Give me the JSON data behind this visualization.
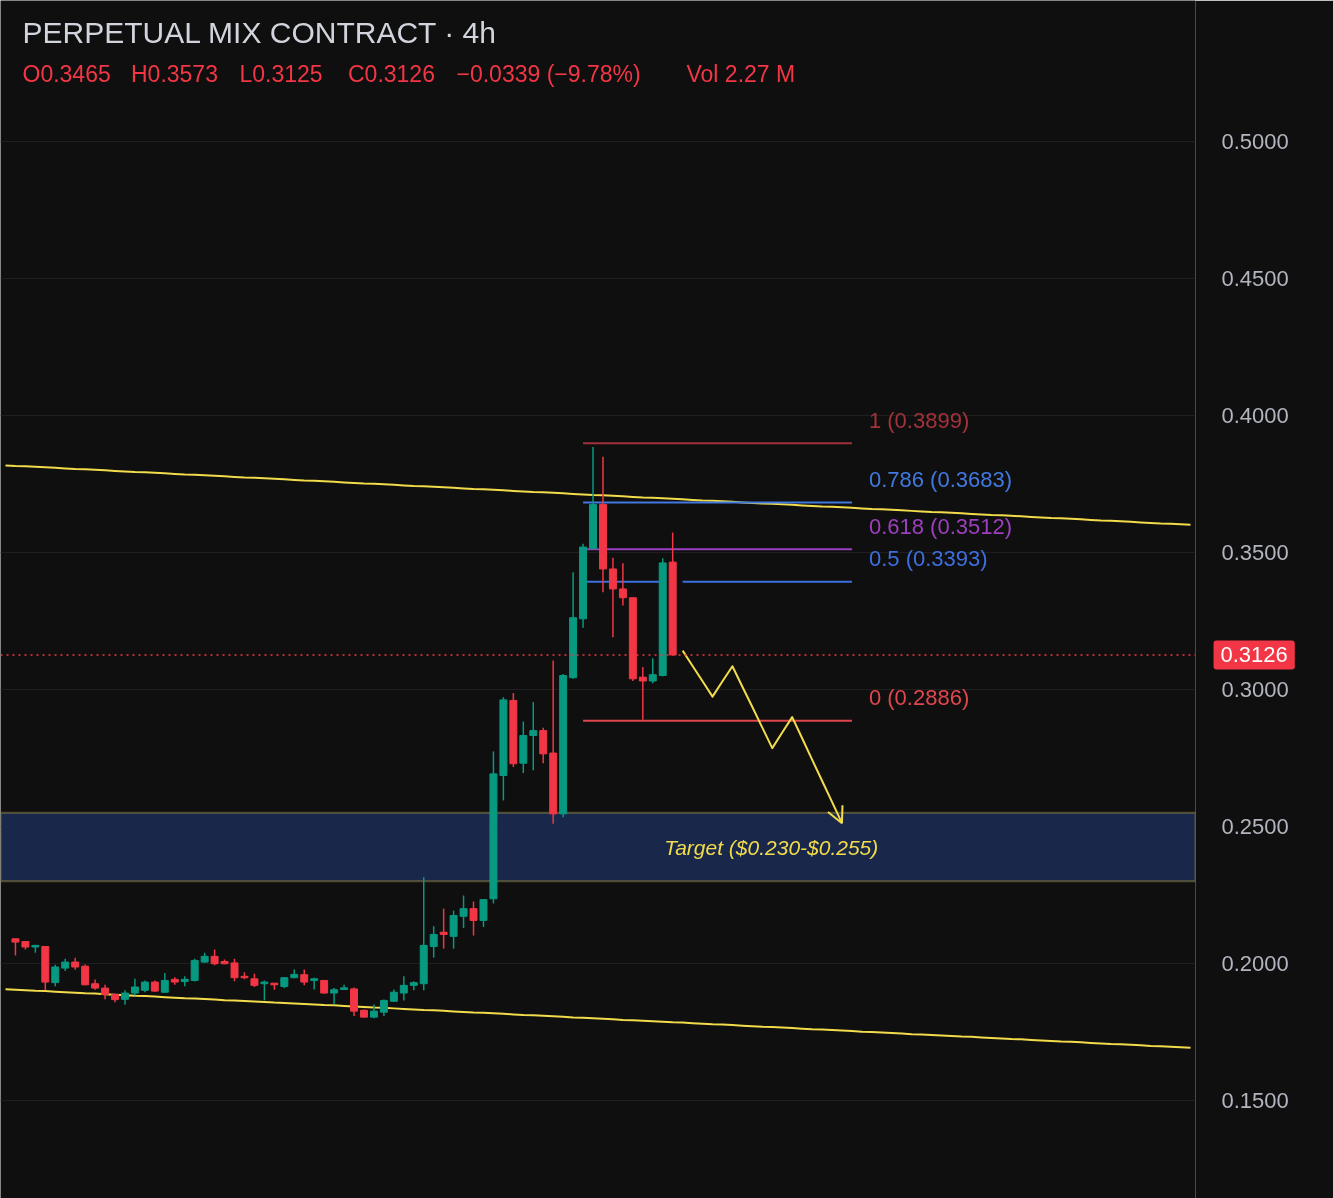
{
  "chart_data": {
    "type": "candlestick",
    "title": "PERPETUAL MIX CONTRACT · 4h",
    "annotations": [
      "O0.3465",
      "H0.3573",
      "L0.3125",
      "C0.3126",
      "−0.0339 (−9.78%)",
      "Vol 2.27 M"
    ],
    "categories": [
      null,
      null,
      null,
      null,
      null,
      null,
      null,
      null,
      null,
      null,
      null,
      null,
      null,
      null,
      null,
      null,
      null,
      null,
      null,
      null,
      null,
      null,
      null,
      null,
      null,
      null,
      null,
      null,
      null,
      null,
      null,
      null,
      null,
      null,
      null,
      null,
      null,
      null,
      null,
      null,
      null,
      null,
      null,
      null,
      null,
      null,
      null,
      null,
      null,
      null,
      null,
      null,
      null,
      null,
      null,
      null,
      null,
      null,
      null,
      null,
      null,
      null,
      null,
      null,
      null,
      null,
      null,
      null,
      null,
      null,
      null,
      null,
      null,
      null,
      null,
      null,
      null,
      null,
      null,
      null,
      null,
      null,
      null,
      null,
      null,
      null,
      null,
      null,
      null,
      null,
      null,
      null,
      null,
      null,
      null,
      null,
      null,
      null,
      null,
      null,
      null,
      null,
      null,
      null,
      null,
      null,
      null,
      null,
      null,
      null,
      null,
      null,
      null,
      null,
      null,
      null,
      null,
      null,
      null,
      null
    ],
    "ohlc": [
      null,
      [
        0.209,
        0.209,
        0.2029,
        0.2078
      ],
      [
        0.208,
        0.208,
        0.2051,
        0.206
      ],
      [
        0.206,
        0.2066,
        0.2039,
        0.2066
      ],
      [
        0.2062,
        0.2062,
        0.1902,
        0.1932
      ],
      [
        0.193,
        0.1995,
        0.1917,
        0.1987
      ],
      [
        0.1983,
        0.2017,
        0.1972,
        0.2005
      ],
      [
        0.2005,
        0.2021,
        0.1977,
        0.1987
      ],
      [
        0.199,
        0.1996,
        0.192,
        0.1922
      ],
      [
        0.1926,
        0.1941,
        0.1904,
        0.191
      ],
      [
        0.191,
        0.1922,
        0.1869,
        0.1887
      ],
      [
        0.1887,
        0.1888,
        0.1858,
        0.1868
      ],
      [
        0.1869,
        0.1902,
        0.1849,
        0.1892
      ],
      [
        0.1892,
        0.1944,
        0.1883,
        0.1914
      ],
      [
        0.1902,
        0.1938,
        0.1895,
        0.1932
      ],
      [
        0.1932,
        0.1938,
        0.1897,
        0.1899
      ],
      [
        0.1895,
        0.1965,
        0.1892,
        0.1938
      ],
      [
        0.1942,
        0.195,
        0.1922,
        0.1932
      ],
      [
        0.1934,
        0.1953,
        0.1917,
        0.1942
      ],
      [
        0.1938,
        0.2017,
        0.1934,
        0.2011
      ],
      [
        0.2005,
        0.2039,
        0.2003,
        0.2026
      ],
      [
        0.2026,
        0.2051,
        0.1993,
        0.1999
      ],
      [
        0.2007,
        0.2014,
        0.1997,
        0.1999
      ],
      [
        0.2002,
        0.2017,
        0.1935,
        0.1948
      ],
      [
        0.1953,
        0.1968,
        0.1942,
        0.1948
      ],
      [
        0.1944,
        0.1962,
        0.1914,
        0.192
      ],
      [
        0.1926,
        0.1938,
        0.1865,
        0.1932
      ],
      [
        0.1928,
        0.1928,
        0.1904,
        0.1922
      ],
      [
        0.1916,
        0.195,
        0.191,
        0.1948
      ],
      [
        0.1948,
        0.1978,
        0.1946,
        0.196
      ],
      [
        0.1959,
        0.1978,
        0.192,
        0.1932
      ],
      [
        0.1938,
        0.1948,
        0.1905,
        0.1944
      ],
      [
        0.1938,
        0.194,
        0.189,
        0.1892
      ],
      [
        0.1892,
        0.191,
        0.185,
        0.1904
      ],
      [
        0.1905,
        0.1922,
        0.1905,
        0.1911
      ],
      [
        0.1907,
        0.1912,
        0.1808,
        0.1826
      ],
      [
        0.1829,
        0.1832,
        0.1804,
        0.1804
      ],
      [
        0.1804,
        0.185,
        0.18,
        0.1826
      ],
      [
        0.1822,
        0.1868,
        0.1808,
        0.1865
      ],
      [
        0.1862,
        0.1905,
        0.186,
        0.1895
      ],
      [
        0.1892,
        0.1953,
        0.1865,
        0.192
      ],
      [
        0.192,
        0.1935,
        0.1902,
        0.193
      ],
      [
        0.1926,
        0.2315,
        0.1902,
        0.2066
      ],
      [
        0.2062,
        0.2136,
        0.2021,
        0.2106
      ],
      [
        0.2114,
        0.22,
        0.2054,
        0.2106
      ],
      [
        0.2099,
        0.2193,
        0.2054,
        0.2175
      ],
      [
        0.2172,
        0.2248,
        0.2129,
        0.22
      ],
      [
        0.22,
        0.2226,
        0.2102,
        0.2157
      ],
      [
        0.2157,
        0.2235,
        0.2133,
        0.2233
      ],
      [
        0.2236,
        0.2774,
        0.2219,
        0.2692
      ],
      [
        0.2686,
        0.2972,
        0.2595,
        0.2962
      ],
      [
        0.296,
        0.2987,
        0.2717,
        0.2729
      ],
      [
        0.2731,
        0.2883,
        0.2695,
        0.2832
      ],
      [
        0.2832,
        0.2954,
        0.2705,
        0.285
      ],
      [
        0.285,
        0.286,
        0.2731,
        0.2765
      ],
      [
        0.2768,
        0.3106,
        0.251,
        0.2546
      ],
      [
        0.2546,
        0.3057,
        0.2534,
        0.3051
      ],
      [
        0.3043,
        0.3428,
        0.3039,
        0.3262
      ],
      [
        0.3258,
        0.3532,
        0.3225,
        0.352
      ],
      [
        0.3514,
        0.3885,
        0.3514,
        0.3675
      ],
      [
        0.3675,
        0.385,
        0.3355,
        0.344
      ],
      [
        0.344,
        0.3481,
        0.3191,
        0.3367
      ],
      [
        0.3367,
        0.3461,
        0.3307,
        0.3335
      ],
      [
        0.3335,
        0.3335,
        0.3031,
        0.3039
      ],
      [
        0.3045,
        0.3082,
        0.289,
        0.3031
      ],
      [
        0.3031,
        0.3114,
        0.3023,
        0.3054
      ],
      [
        0.3051,
        0.3479,
        0.3048,
        0.3462
      ],
      [
        0.3465,
        0.3573,
        0.3125,
        0.3126
      ],
      null,
      null,
      null,
      null,
      null,
      null,
      null,
      null,
      null,
      null,
      null,
      null,
      null,
      null,
      null,
      null,
      null,
      null,
      null,
      null,
      null,
      null,
      null,
      null,
      null,
      null,
      null,
      null,
      null,
      null,
      null,
      null,
      null,
      null,
      null,
      null,
      null,
      null,
      null,
      null,
      null,
      null,
      null,
      null,
      null,
      null,
      null,
      null,
      null,
      null,
      null,
      null
    ],
    "ylim": [
      0.1142,
      0.5515
    ],
    "yticks": [
      {
        "value": 0.15,
        "label": "0.1500"
      },
      {
        "value": 0.2,
        "label": "0.2000"
      },
      {
        "value": 0.25,
        "label": "0.2500"
      },
      {
        "value": 0.3,
        "label": "0.3000"
      },
      {
        "value": 0.35,
        "label": "0.3500"
      },
      {
        "value": 0.4,
        "label": "0.4000"
      },
      {
        "value": 0.45,
        "label": "0.4500"
      },
      {
        "value": 0.5,
        "label": "0.5000"
      }
    ],
    "tick_labels": "y",
    "grid": "y",
    "series": [
      {
        "type": "line",
        "color": "#f2dc4b",
        "values": [
          0.3818,
          0.3816,
          0.3815,
          0.3813,
          0.3811,
          0.3809,
          0.3807,
          0.3805,
          0.3804,
          0.3802,
          0.38,
          0.3798,
          0.3796,
          0.3794,
          0.3793,
          0.3791,
          0.3789,
          0.3787,
          0.3785,
          0.3784,
          0.3782,
          0.378,
          0.3778,
          0.3776,
          0.3774,
          0.3773,
          0.3771,
          0.3769,
          0.3767,
          0.3765,
          0.3763,
          0.3762,
          0.376,
          0.3758,
          0.3756,
          0.3754,
          0.3752,
          0.3751,
          0.3749,
          0.3747,
          0.3745,
          0.3743,
          0.3742,
          0.374,
          0.3738,
          0.3736,
          0.3734,
          0.3732,
          0.3731,
          0.3729,
          0.3727,
          0.3725,
          0.3723,
          0.3721,
          0.372,
          0.3718,
          0.3716,
          0.3714,
          0.3712,
          0.371,
          0.3709,
          0.3707,
          0.3705,
          0.3703,
          0.3701,
          0.37,
          0.3698,
          0.3696,
          0.3694,
          0.3692,
          0.369,
          0.3689,
          0.3687,
          0.3685,
          0.3683,
          0.3681,
          0.3679,
          0.3678,
          0.3676,
          0.3674,
          0.3672,
          0.367,
          0.3668,
          0.3667,
          0.3665,
          0.3663,
          0.3661,
          0.3659,
          0.3658,
          0.3656,
          0.3654,
          0.3652,
          0.365,
          0.3648,
          0.3647,
          0.3645,
          0.3643,
          0.3641,
          0.3639,
          0.3637,
          0.3636,
          0.3634,
          0.3632,
          0.363,
          0.3628,
          0.3626,
          0.3625,
          0.3623,
          0.3621,
          0.3619,
          0.3617,
          0.3616,
          0.3614,
          0.3612,
          0.361,
          0.3608,
          0.3606,
          0.3605,
          0.3603,
          0.3601
        ]
      },
      {
        "type": "line",
        "color": "#f2dc4b",
        "values": [
          0.1906,
          0.1904,
          0.1902,
          0.19,
          0.1899,
          0.1897,
          0.1895,
          0.1893,
          0.1891,
          0.189,
          0.1888,
          0.1886,
          0.1884,
          0.1882,
          0.1881,
          0.1879,
          0.1877,
          0.1875,
          0.1873,
          0.1872,
          0.187,
          0.1868,
          0.1866,
          0.1865,
          0.1863,
          0.1861,
          0.1859,
          0.1857,
          0.1856,
          0.1854,
          0.1852,
          0.185,
          0.1848,
          0.1847,
          0.1845,
          0.1843,
          0.1841,
          0.1839,
          0.1838,
          0.1836,
          0.1834,
          0.1832,
          0.183,
          0.1829,
          0.1827,
          0.1825,
          0.1823,
          0.1821,
          0.182,
          0.1818,
          0.1816,
          0.1814,
          0.1812,
          0.1811,
          0.1809,
          0.1807,
          0.1805,
          0.1803,
          0.1802,
          0.18,
          0.1798,
          0.1796,
          0.1794,
          0.1793,
          0.1791,
          0.1789,
          0.1787,
          0.1785,
          0.1784,
          0.1782,
          0.178,
          0.1778,
          0.1777,
          0.1775,
          0.1773,
          0.1771,
          0.1769,
          0.1768,
          0.1766,
          0.1764,
          0.1762,
          0.176,
          0.1759,
          0.1757,
          0.1755,
          0.1753,
          0.1751,
          0.175,
          0.1748,
          0.1746,
          0.1744,
          0.1742,
          0.1741,
          0.1739,
          0.1737,
          0.1735,
          0.1733,
          0.1732,
          0.173,
          0.1728,
          0.1726,
          0.1724,
          0.1723,
          0.1721,
          0.1719,
          0.1717,
          0.1715,
          0.1714,
          0.1712,
          0.171,
          0.1708,
          0.1706,
          0.1705,
          0.1703,
          0.1701,
          0.1699,
          0.1698,
          0.1696,
          0.1694,
          0.1692
        ]
      },
      {
        "type": "line",
        "name": "1 (0.3899)",
        "color": "#a3323c",
        "values": [
          null,
          null,
          null,
          null,
          null,
          null,
          null,
          null,
          null,
          null,
          null,
          null,
          null,
          null,
          null,
          null,
          null,
          null,
          null,
          null,
          null,
          null,
          null,
          null,
          null,
          null,
          null,
          null,
          null,
          null,
          null,
          null,
          null,
          null,
          null,
          null,
          null,
          null,
          null,
          null,
          null,
          null,
          null,
          null,
          null,
          null,
          null,
          null,
          null,
          null,
          null,
          null,
          null,
          null,
          null,
          null,
          null,
          null,
          0.3899,
          0.3899,
          0.3899,
          0.3899,
          0.3899,
          0.3899,
          0.3899,
          0.3899,
          0.3899,
          0.3899,
          0.3899,
          0.3899,
          0.3899,
          0.3899,
          0.3899,
          0.3899,
          0.3899,
          0.3899,
          0.3899,
          0.3899,
          0.3899,
          0.3899,
          0.3899,
          0.3899,
          0.3899,
          0.3899,
          0.3899,
          0.3899,
          null,
          null,
          null,
          null,
          null,
          null,
          null,
          null,
          null,
          null,
          null,
          null,
          null,
          null,
          null,
          null,
          null,
          null,
          null,
          null,
          null,
          null,
          null,
          null,
          null,
          null,
          null,
          null,
          null,
          null,
          null,
          null,
          null,
          null
        ]
      },
      {
        "type": "line",
        "name": "0.786 (0.3683)",
        "color": "#4179e0",
        "values": [
          null,
          null,
          null,
          null,
          null,
          null,
          null,
          null,
          null,
          null,
          null,
          null,
          null,
          null,
          null,
          null,
          null,
          null,
          null,
          null,
          null,
          null,
          null,
          null,
          null,
          null,
          null,
          null,
          null,
          null,
          null,
          null,
          null,
          null,
          null,
          null,
          null,
          null,
          null,
          null,
          null,
          null,
          null,
          null,
          null,
          null,
          null,
          null,
          null,
          null,
          null,
          null,
          null,
          null,
          null,
          null,
          null,
          null,
          0.3683,
          0.3683,
          0.3683,
          0.3683,
          0.3683,
          0.3683,
          0.3683,
          0.3683,
          0.3683,
          0.3683,
          0.3683,
          0.3683,
          0.3683,
          0.3683,
          0.3683,
          0.3683,
          0.3683,
          0.3683,
          0.3683,
          0.3683,
          0.3683,
          0.3683,
          0.3683,
          0.3683,
          0.3683,
          0.3683,
          0.3683,
          0.3683,
          null,
          null,
          null,
          null,
          null,
          null,
          null,
          null,
          null,
          null,
          null,
          null,
          null,
          null,
          null,
          null,
          null,
          null,
          null,
          null,
          null,
          null,
          null,
          null,
          null,
          null,
          null,
          null,
          null,
          null,
          null,
          null,
          null,
          null
        ]
      },
      {
        "type": "line",
        "name": "0.618 (0.3512)",
        "color": "#9d3fbf",
        "values": [
          null,
          null,
          null,
          null,
          null,
          null,
          null,
          null,
          null,
          null,
          null,
          null,
          null,
          null,
          null,
          null,
          null,
          null,
          null,
          null,
          null,
          null,
          null,
          null,
          null,
          null,
          null,
          null,
          null,
          null,
          null,
          null,
          null,
          null,
          null,
          null,
          null,
          null,
          null,
          null,
          null,
          null,
          null,
          null,
          null,
          null,
          null,
          null,
          null,
          null,
          null,
          null,
          null,
          null,
          null,
          null,
          null,
          null,
          0.3512,
          0.3512,
          0.3512,
          0.3512,
          0.3512,
          0.3512,
          0.3512,
          0.3512,
          0.3512,
          0.3512,
          0.3512,
          0.3512,
          0.3512,
          0.3512,
          0.3512,
          0.3512,
          0.3512,
          0.3512,
          0.3512,
          0.3512,
          0.3512,
          0.3512,
          0.3512,
          0.3512,
          0.3512,
          0.3512,
          0.3512,
          0.3512,
          null,
          null,
          null,
          null,
          null,
          null,
          null,
          null,
          null,
          null,
          null,
          null,
          null,
          null,
          null,
          null,
          null,
          null,
          null,
          null,
          null,
          null,
          null,
          null,
          null,
          null,
          null,
          null,
          null,
          null,
          null,
          null,
          null,
          null
        ]
      },
      {
        "type": "line",
        "name": "0.5 (0.3393)",
        "color": "#3d6fe0",
        "values": [
          null,
          null,
          null,
          null,
          null,
          null,
          null,
          null,
          null,
          null,
          null,
          null,
          null,
          null,
          null,
          null,
          null,
          null,
          null,
          null,
          null,
          null,
          null,
          null,
          null,
          null,
          null,
          null,
          null,
          null,
          null,
          null,
          null,
          null,
          null,
          null,
          null,
          null,
          null,
          null,
          null,
          null,
          null,
          null,
          null,
          null,
          null,
          null,
          null,
          null,
          null,
          null,
          null,
          null,
          null,
          null,
          null,
          null,
          0.3393,
          0.3393,
          0.3393,
          0.3393,
          0.3393,
          0.3393,
          0.3393,
          0.3393,
          0.3393,
          null,
          0.3393,
          0.3393,
          0.3393,
          0.3393,
          0.3393,
          0.3393,
          0.3393,
          0.3393,
          0.3393,
          0.3393,
          0.3393,
          0.3393,
          0.3393,
          0.3393,
          0.3393,
          0.3393,
          0.3393,
          0.3393,
          null,
          null,
          null,
          null,
          null,
          null,
          null,
          null,
          null,
          null,
          null,
          null,
          null,
          null,
          null,
          null,
          null,
          null,
          null,
          null,
          null,
          null,
          null,
          null,
          null,
          null,
          null,
          null,
          null,
          null,
          null,
          null,
          null,
          null
        ]
      },
      {
        "type": "line",
        "name": "0 (0.2886)",
        "color": "#e0464e",
        "values": [
          null,
          null,
          null,
          null,
          null,
          null,
          null,
          null,
          null,
          null,
          null,
          null,
          null,
          null,
          null,
          null,
          null,
          null,
          null,
          null,
          null,
          null,
          null,
          null,
          null,
          null,
          null,
          null,
          null,
          null,
          null,
          null,
          null,
          null,
          null,
          null,
          null,
          null,
          null,
          null,
          null,
          null,
          null,
          null,
          null,
          null,
          null,
          null,
          null,
          null,
          null,
          null,
          null,
          null,
          null,
          null,
          null,
          null,
          0.2886,
          0.2886,
          0.2886,
          0.2886,
          0.2886,
          0.2886,
          0.2886,
          0.2886,
          0.2886,
          0.2886,
          0.2886,
          0.2886,
          0.2886,
          0.2886,
          0.2886,
          0.2886,
          0.2886,
          0.2886,
          0.2886,
          0.2886,
          0.2886,
          0.2886,
          0.2886,
          0.2886,
          0.2886,
          0.2886,
          0.2886,
          0.2886,
          null,
          null,
          null,
          null,
          null,
          null,
          null,
          null,
          null,
          null,
          null,
          null,
          null,
          null,
          null,
          null,
          null,
          null,
          null,
          null,
          null,
          null,
          null,
          null,
          null,
          null,
          null,
          null,
          null,
          null,
          null,
          null,
          null,
          null
        ]
      },
      {
        "type": "line",
        "color": "#f2dc4b",
        "values": [
          null,
          null,
          null,
          null,
          null,
          null,
          null,
          null,
          null,
          null,
          null,
          null,
          null,
          null,
          null,
          null,
          null,
          null,
          null,
          null,
          null,
          null,
          null,
          null,
          null,
          null,
          null,
          null,
          null,
          null,
          null,
          null,
          null,
          null,
          null,
          null,
          null,
          null,
          null,
          null,
          null,
          null,
          null,
          null,
          null,
          null,
          null,
          null,
          null,
          null,
          null,
          null,
          null,
          null,
          null,
          null,
          null,
          null,
          null,
          null,
          null,
          null,
          null,
          null,
          null,
          null,
          null,
          null,
          0.3142,
          0.3086,
          0.303,
          0.2974,
          0.303,
          0.3085,
          0.301,
          0.2936,
          0.2861,
          0.2786,
          0.2843,
          0.2899,
          0.2822,
          0.2744,
          0.2667,
          0.259,
          0.2512,
          null,
          null,
          null,
          null,
          null,
          null,
          null,
          null,
          null,
          null,
          null,
          null,
          null,
          null,
          null,
          null,
          null,
          null,
          null,
          null,
          null,
          null,
          null,
          null,
          null,
          null,
          null,
          null,
          null,
          null,
          null,
          null,
          null,
          null,
          null
        ]
      }
    ],
    "ref_lines": [
      {
        "axis": "y",
        "value": 0.3126,
        "label": "0.3126",
        "color": "#f23645",
        "line_style": "dotted"
      }
    ],
    "bands": [
      {
        "axis": "y",
        "from": 0.23,
        "to": 0.255,
        "label": "Target ($0.230-$0.255)",
        "color": "#1b2a52"
      }
    ]
  }
}
